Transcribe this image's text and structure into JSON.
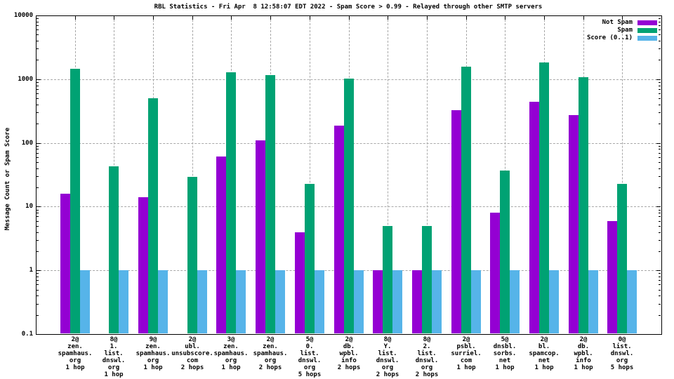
{
  "chart_data": {
    "type": "bar",
    "title": "RBL Statistics - Fri Apr  8 12:58:07 EDT 2022 - Spam Score > 0.99 - Relayed through other SMTP servers",
    "ylabel": "Message Count or Spam Score",
    "y_scale": "log",
    "ylim": [
      0.1,
      10000
    ],
    "yticks": [
      {
        "label": "10000",
        "value": 10000
      },
      {
        "label": "1000",
        "value": 1000
      },
      {
        "label": "100",
        "value": 100
      },
      {
        "label": "10",
        "value": 10
      },
      {
        "label": "1",
        "value": 1
      },
      {
        "label": "0.1",
        "value": 0.1
      }
    ],
    "grid": {
      "horizontal_values": [
        1000,
        100,
        10,
        1
      ],
      "style": "dashed",
      "color": "#a8a8a8"
    },
    "legend_position": "top-right",
    "categories": [
      [
        "2@",
        "zen.",
        "spamhaus.",
        "org",
        "1 hop"
      ],
      [
        "8@",
        "1.",
        "list.",
        "dnswl.",
        "org",
        "1 hop"
      ],
      [
        "9@",
        "zen.",
        "spamhaus.",
        "org",
        "1 hop"
      ],
      [
        "2@",
        "ubl.",
        "unsubscore.",
        "com",
        "2 hops"
      ],
      [
        "3@",
        "zen.",
        "spamhaus.",
        "org",
        "1 hop"
      ],
      [
        "2@",
        "zen.",
        "spamhaus.",
        "org",
        "2 hops"
      ],
      [
        "5@",
        "0.",
        "list.",
        "dnswl.",
        "org",
        "5 hops"
      ],
      [
        "2@",
        "db.",
        "wpbl.",
        "info",
        "2 hops"
      ],
      [
        "8@",
        "Y.",
        "list.",
        "dnswl.",
        "org",
        "2 hops"
      ],
      [
        "8@",
        "2.",
        "list.",
        "dnswl.",
        "org",
        "2 hops"
      ],
      [
        "2@",
        "psbl.",
        "surriel.",
        "com",
        "1 hop"
      ],
      [
        "5@",
        "dnsbl.",
        "sorbs.",
        "net",
        "1 hop"
      ],
      [
        "2@",
        "bl.",
        "spamcop.",
        "net",
        "1 hop"
      ],
      [
        "2@",
        "db.",
        "wpbl.",
        "info",
        "1 hop"
      ],
      [
        "0@",
        "list.",
        "dnswl.",
        "org",
        "5 hops"
      ]
    ],
    "series": [
      {
        "name": "Not Spam",
        "color": "#9400d3",
        "values": [
          16,
          null,
          14,
          null,
          61,
          110,
          4,
          185,
          1,
          1,
          330,
          8,
          440,
          270,
          6
        ]
      },
      {
        "name": "Spam",
        "color": "#00a273",
        "values": [
          1450,
          43,
          500,
          29,
          1270,
          1170,
          23,
          1030,
          5,
          5,
          1570,
          37,
          1810,
          1070,
          23
        ]
      },
      {
        "name": "Score (0..1)",
        "color": "#56b4e9",
        "values": [
          1,
          1,
          1,
          1,
          1,
          1,
          1,
          1,
          1,
          1,
          1,
          1,
          1,
          1,
          1
        ]
      }
    ],
    "colors": {
      "background": "#ffffff",
      "border": "#000000",
      "grid": "#a8a8a8",
      "not_spam": "#9400d3",
      "spam": "#00a273",
      "score": "#56b4e9"
    }
  }
}
